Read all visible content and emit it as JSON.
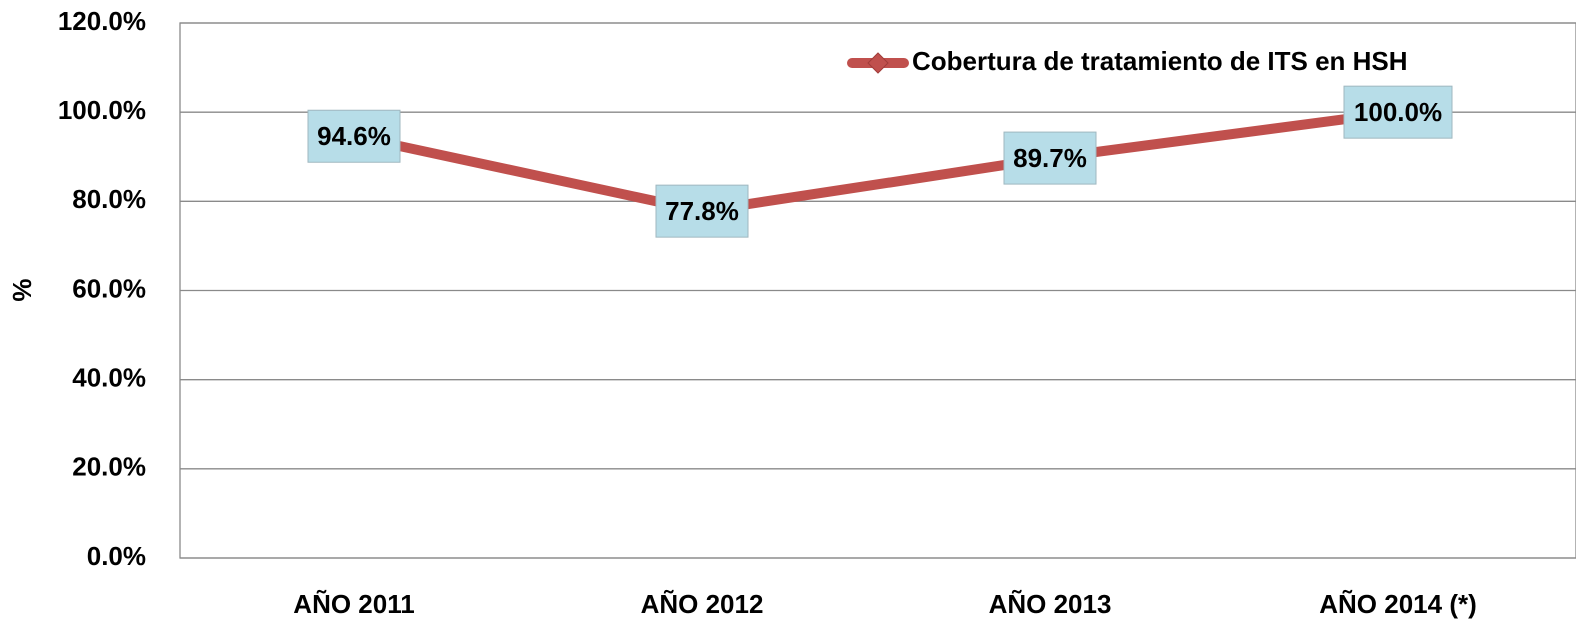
{
  "chart_data": {
    "type": "line",
    "ylabel": "%",
    "categories": [
      "AÑO 2011",
      "AÑO 2012",
      "AÑO 2013",
      "AÑO 2014 (*)"
    ],
    "series": [
      {
        "name": "Cobertura de tratamiento de ITS en HSH",
        "color": "#c0504d",
        "values": [
          94.6,
          77.8,
          89.7,
          100
        ],
        "value_labels": [
          "94.6%",
          "77.8%",
          "89.7%",
          "100.0%"
        ]
      }
    ],
    "ylim": [
      0,
      120
    ],
    "yticks": [
      {
        "value": 0,
        "label": "0.0%"
      },
      {
        "value": 20,
        "label": "20.0%"
      },
      {
        "value": 40,
        "label": "40.0%"
      },
      {
        "value": 60,
        "label": "60.0%"
      },
      {
        "value": 80,
        "label": "80.0%"
      },
      {
        "value": 100,
        "label": "100.0%"
      },
      {
        "value": 120,
        "label": "120.0%"
      }
    ],
    "grid": true,
    "legend": "upper right"
  }
}
